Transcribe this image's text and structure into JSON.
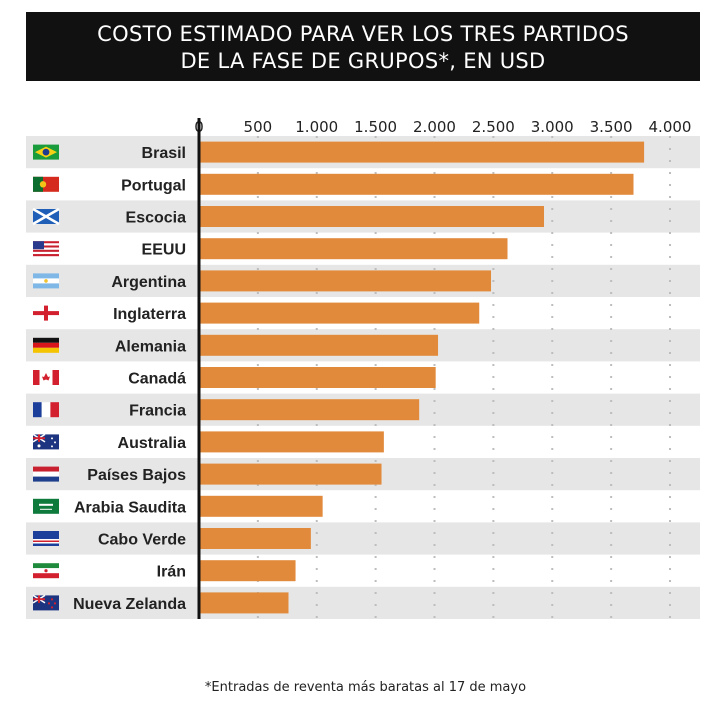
{
  "title": {
    "line1": "COSTO ESTIMADO PARA VER LOS TRES PARTIDOS",
    "line2": "DE LA FASE DE GRUPOS*, EN USD"
  },
  "footnote": "*Entradas de reventa más baratas al 17 de mayo",
  "colors": {
    "bar": "#E28A3B",
    "stripe": "#E6E6E6",
    "title_bg": "#111111",
    "axis": "#111111"
  },
  "chart_data": {
    "type": "bar",
    "orientation": "horizontal",
    "categories": [
      "Brasil",
      "Portugal",
      "Escocia",
      "EEUU",
      "Argentina",
      "Inglaterra",
      "Alemania",
      "Canadá",
      "Francia",
      "Australia",
      "Países Bajos",
      "Arabia Saudita",
      "Cabo Verde",
      "Irán",
      "Nueva Zelanda"
    ],
    "flags": [
      "flag-brazil-icon",
      "flag-portugal-icon",
      "flag-scotland-icon",
      "flag-usa-icon",
      "flag-argentina-icon",
      "flag-england-icon",
      "flag-germany-icon",
      "flag-canada-icon",
      "flag-france-icon",
      "flag-australia-icon",
      "flag-netherlands-icon",
      "flag-saudi-arabia-icon",
      "flag-cape-verde-icon",
      "flag-iran-icon",
      "flag-new-zealand-icon"
    ],
    "values": [
      3780,
      3690,
      2930,
      2620,
      2480,
      2380,
      2030,
      2010,
      1870,
      1570,
      1550,
      1050,
      950,
      820,
      760
    ],
    "xlim": [
      0,
      4000
    ],
    "ticks": [
      0,
      500,
      1000,
      1500,
      2000,
      2500,
      3000,
      3500,
      4000
    ],
    "tick_labels": [
      "0",
      "500",
      "1.000",
      "1.500",
      "2.000",
      "2.500",
      "3.000",
      "3.500",
      "4.000"
    ],
    "grid": "dotted vertical",
    "alternating_row_stripes": true
  }
}
